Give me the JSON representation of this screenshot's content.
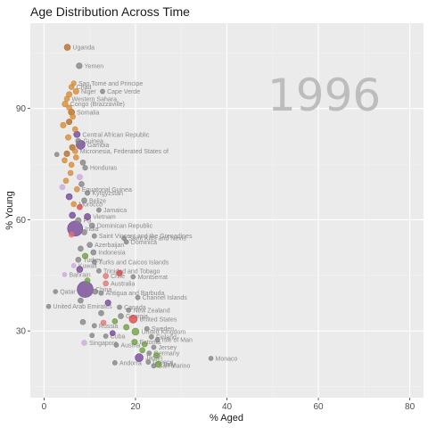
{
  "chart_data": {
    "type": "scatter",
    "title": "Age Distribution Across Time",
    "xlabel": "% Aged",
    "ylabel": "% Young",
    "xlim": [
      -3,
      83
    ],
    "ylim": [
      12,
      113
    ],
    "x_ticks": [
      0,
      20,
      40,
      60,
      80
    ],
    "y_ticks": [
      30,
      60,
      90
    ],
    "year": "1996",
    "grid": true,
    "legend": "none",
    "colors": {
      "panel": "#ebebeb",
      "grid_major": "#ffffff",
      "grid_minor": "#f4f4f4",
      "grey": "#7f7f7f",
      "orange": "#d4872f",
      "dark_orange": "#b5651d",
      "purple": "#6d3e91",
      "red": "#d94040",
      "green": "#6a9a3a",
      "light_purple": "#c9a6d9",
      "pink": "#e07070"
    },
    "points": [
      {
        "x": 5.1,
        "y": 106.5,
        "r": 3.5,
        "c": "dark_orange",
        "label": "Uganda"
      },
      {
        "x": 7.7,
        "y": 101.5,
        "r": 3.3,
        "c": "grey",
        "label": "Yemen"
      },
      {
        "x": 6.5,
        "y": 96.8,
        "r": 2.8,
        "c": "orange",
        "label": "Sao Tome and Principe"
      },
      {
        "x": 6.0,
        "y": 95.8,
        "r": 3,
        "c": "orange",
        "label": "Chad"
      },
      {
        "x": 7.0,
        "y": 94.6,
        "r": 3.2,
        "c": "orange",
        "label": "Niger"
      },
      {
        "x": 12.8,
        "y": 94.6,
        "r": 2.6,
        "c": "grey",
        "label": "Cape Verde"
      },
      {
        "x": 5.5,
        "y": 93.8,
        "r": 3.2,
        "c": "orange",
        "label": ""
      },
      {
        "x": 5.0,
        "y": 92.6,
        "r": 3,
        "c": "orange",
        "label": "Western Sahara"
      },
      {
        "x": 4.6,
        "y": 91.2,
        "r": 3.3,
        "c": "orange",
        "label": "Congo (Brazzaville)"
      },
      {
        "x": 5.5,
        "y": 90.2,
        "r": 3,
        "c": "orange",
        "label": ""
      },
      {
        "x": 6.0,
        "y": 89.0,
        "r": 3.5,
        "c": "dark_orange",
        "label": "Somalia"
      },
      {
        "x": 6.3,
        "y": 87.8,
        "r": 3,
        "c": "orange",
        "label": ""
      },
      {
        "x": 5.5,
        "y": 86.4,
        "r": 3.2,
        "c": "dark_orange",
        "label": ""
      },
      {
        "x": 4.2,
        "y": 85.5,
        "r": 3.2,
        "c": "orange",
        "label": ""
      },
      {
        "x": 6.8,
        "y": 84.4,
        "r": 3,
        "c": "orange",
        "label": ""
      },
      {
        "x": 7.2,
        "y": 83.0,
        "r": 3.6,
        "c": "purple",
        "label": "Central African Republic"
      },
      {
        "x": 5.3,
        "y": 82.2,
        "r": 3.2,
        "c": "orange",
        "label": ""
      },
      {
        "x": 7.5,
        "y": 81.2,
        "r": 3,
        "c": "grey",
        "label": "Guinea"
      },
      {
        "x": 8.0,
        "y": 80.2,
        "r": 5,
        "c": "purple",
        "label": "Gambia"
      },
      {
        "x": 6.2,
        "y": 79.5,
        "r": 3.3,
        "c": "dark_orange",
        "label": ""
      },
      {
        "x": 6.8,
        "y": 78.5,
        "r": 3,
        "c": "orange",
        "label": "Micronesia, Federated States of"
      },
      {
        "x": 5.0,
        "y": 77.8,
        "r": 3.2,
        "c": "dark_orange",
        "label": ""
      },
      {
        "x": 2.8,
        "y": 77.6,
        "r": 2.5,
        "c": "grey",
        "label": ""
      },
      {
        "x": 7.0,
        "y": 76.8,
        "r": 3,
        "c": "orange",
        "label": ""
      },
      {
        "x": 4.5,
        "y": 76.0,
        "r": 3,
        "c": "orange",
        "label": ""
      },
      {
        "x": 8.5,
        "y": 75.4,
        "r": 3,
        "c": "grey",
        "label": ""
      },
      {
        "x": 6.0,
        "y": 74.8,
        "r": 3,
        "c": "orange",
        "label": ""
      },
      {
        "x": 9.0,
        "y": 74.0,
        "r": 2.8,
        "c": "grey",
        "label": "Honduras"
      },
      {
        "x": 5.8,
        "y": 72.6,
        "r": 3,
        "c": "orange",
        "label": ""
      },
      {
        "x": 7.8,
        "y": 71.5,
        "r": 3.2,
        "c": "light_purple",
        "label": ""
      },
      {
        "x": 4.8,
        "y": 70.5,
        "r": 3,
        "c": "orange",
        "label": ""
      },
      {
        "x": 8.2,
        "y": 69.6,
        "r": 3,
        "c": "grey",
        "label": ""
      },
      {
        "x": 4.0,
        "y": 68.8,
        "r": 3,
        "c": "light_purple",
        "label": ""
      },
      {
        "x": 7.2,
        "y": 68.2,
        "r": 3,
        "c": "orange",
        "label": "Equatorial Guinea"
      },
      {
        "x": 9.5,
        "y": 67.2,
        "r": 2.8,
        "c": "grey",
        "label": "Kyrgyzstan"
      },
      {
        "x": 5.5,
        "y": 66.2,
        "r": 3.5,
        "c": "purple",
        "label": ""
      },
      {
        "x": 8.8,
        "y": 65.2,
        "r": 3,
        "c": "grey",
        "label": "Belize"
      },
      {
        "x": 6.5,
        "y": 64.2,
        "r": 3,
        "c": "orange",
        "label": "Morocco"
      },
      {
        "x": 7.8,
        "y": 63.4,
        "r": 3,
        "c": "red",
        "label": ""
      },
      {
        "x": 12.0,
        "y": 62.6,
        "r": 2.6,
        "c": "grey",
        "label": "Jamaica"
      },
      {
        "x": 6.2,
        "y": 61.2,
        "r": 3.5,
        "c": "purple",
        "label": ""
      },
      {
        "x": 9.5,
        "y": 60.8,
        "r": 3.6,
        "c": "purple",
        "label": "Vietnam"
      },
      {
        "x": 7.5,
        "y": 59.8,
        "r": 3.2,
        "c": "grey",
        "label": "Fiji"
      },
      {
        "x": 10.5,
        "y": 58.4,
        "r": 3,
        "c": "grey",
        "label": "Dominican Republic"
      },
      {
        "x": 6.8,
        "y": 57.6,
        "r": 8.5,
        "c": "purple",
        "label": "India"
      },
      {
        "x": 8.8,
        "y": 56.6,
        "r": 3,
        "c": "grey",
        "label": ""
      },
      {
        "x": 6.0,
        "y": 56.0,
        "r": 3,
        "c": "pink",
        "label": ""
      },
      {
        "x": 11.0,
        "y": 55.6,
        "r": 2.6,
        "c": "grey",
        "label": "Saint Vincent and the Grenadines"
      },
      {
        "x": 17.5,
        "y": 55.0,
        "r": 2.6,
        "c": "grey",
        "label": "Saint Kitts and Nevis"
      },
      {
        "x": 18.0,
        "y": 54.0,
        "r": 2.6,
        "c": "grey",
        "label": "Dominica"
      },
      {
        "x": 10.0,
        "y": 53.2,
        "r": 3,
        "c": "grey",
        "label": "Azerbaijan"
      },
      {
        "x": 8.0,
        "y": 52.2,
        "r": 3,
        "c": "grey",
        "label": ""
      },
      {
        "x": 10.8,
        "y": 51.2,
        "r": 3,
        "c": "grey",
        "label": "Indonesia"
      },
      {
        "x": 9.0,
        "y": 50.2,
        "r": 3.2,
        "c": "green",
        "label": ""
      },
      {
        "x": 7.5,
        "y": 49.2,
        "r": 3,
        "c": "grey",
        "label": "Turkey"
      },
      {
        "x": 11.0,
        "y": 48.6,
        "r": 2.6,
        "c": "grey",
        "label": "Turks and Caicos Islands"
      },
      {
        "x": 6.5,
        "y": 47.6,
        "r": 2.6,
        "c": "light_purple",
        "label": "Kuwait"
      },
      {
        "x": 7.8,
        "y": 46.6,
        "r": 3.5,
        "c": "purple",
        "label": ""
      },
      {
        "x": 12.0,
        "y": 46.2,
        "r": 2.6,
        "c": "grey",
        "label": "Trinidad and Tobago"
      },
      {
        "x": 16.5,
        "y": 45.6,
        "r": 3.2,
        "c": "red",
        "label": ""
      },
      {
        "x": 4.5,
        "y": 45.2,
        "r": 2.5,
        "c": "light_purple",
        "label": "Bahrain"
      },
      {
        "x": 13.5,
        "y": 44.8,
        "r": 3,
        "c": "pink",
        "label": "Chile"
      },
      {
        "x": 19.5,
        "y": 44.6,
        "r": 2.6,
        "c": "grey",
        "label": "Montserrat"
      },
      {
        "x": 9.5,
        "y": 43.6,
        "r": 3,
        "c": "green",
        "label": ""
      },
      {
        "x": 13.5,
        "y": 42.8,
        "r": 3,
        "c": "pink",
        "label": "Australia"
      },
      {
        "x": 9.0,
        "y": 41.2,
        "r": 9,
        "c": "purple",
        "label": "China"
      },
      {
        "x": 11.2,
        "y": 40.6,
        "r": 3,
        "c": "grey",
        "label": ""
      },
      {
        "x": 12.5,
        "y": 40.2,
        "r": 2.6,
        "c": "grey",
        "label": "Antigua and Barbuda"
      },
      {
        "x": 2.5,
        "y": 40.6,
        "r": 2.5,
        "c": "grey",
        "label": "Qatar"
      },
      {
        "x": 20.5,
        "y": 39.0,
        "r": 2.6,
        "c": "grey",
        "label": "Channel Islands"
      },
      {
        "x": 8.0,
        "y": 38.2,
        "r": 3,
        "c": "grey",
        "label": ""
      },
      {
        "x": 14.0,
        "y": 37.6,
        "r": 3.2,
        "c": "purple",
        "label": ""
      },
      {
        "x": 1.0,
        "y": 36.6,
        "r": 2.5,
        "c": "grey",
        "label": "United Arab Emirates"
      },
      {
        "x": 16.5,
        "y": 36.4,
        "r": 2.6,
        "c": "grey",
        "label": "Canada"
      },
      {
        "x": 18.5,
        "y": 35.6,
        "r": 2.6,
        "c": "grey",
        "label": "New Zealand"
      },
      {
        "x": 12.5,
        "y": 34.8,
        "r": 3,
        "c": "grey",
        "label": ""
      },
      {
        "x": 16.8,
        "y": 34.0,
        "r": 3,
        "c": "grey",
        "label": "Georgia"
      },
      {
        "x": 19.5,
        "y": 33.2,
        "r": 4.5,
        "c": "red",
        "label": "United States"
      },
      {
        "x": 15.5,
        "y": 32.6,
        "r": 3,
        "c": "green",
        "label": ""
      },
      {
        "x": 13.0,
        "y": 32.2,
        "r": 3,
        "c": "pink",
        "label": ""
      },
      {
        "x": 8.5,
        "y": 32.4,
        "r": 3,
        "c": "grey",
        "label": ""
      },
      {
        "x": 11.0,
        "y": 31.4,
        "r": 2.6,
        "c": "grey",
        "label": "Russia"
      },
      {
        "x": 18.0,
        "y": 31.0,
        "r": 3.2,
        "c": "green",
        "label": ""
      },
      {
        "x": 22.5,
        "y": 30.6,
        "r": 2.6,
        "c": "grey",
        "label": "Sweden"
      },
      {
        "x": 20.0,
        "y": 29.8,
        "r": 4,
        "c": "green",
        "label": "United Kingdom"
      },
      {
        "x": 15.0,
        "y": 29.4,
        "r": 3,
        "c": "purple",
        "label": ""
      },
      {
        "x": 13.5,
        "y": 28.6,
        "r": 2.6,
        "c": "grey",
        "label": "Cuba"
      },
      {
        "x": 23.5,
        "y": 28.4,
        "r": 2.6,
        "c": "grey",
        "label": "Finland"
      },
      {
        "x": 10.5,
        "y": 28.8,
        "r": 2.6,
        "c": "grey",
        "label": ""
      },
      {
        "x": 24.8,
        "y": 27.6,
        "r": 2.6,
        "c": "grey",
        "label": "Isle of Man"
      },
      {
        "x": 19.8,
        "y": 27.0,
        "r": 3.2,
        "c": "green",
        "label": "Estonia"
      },
      {
        "x": 8.8,
        "y": 26.8,
        "r": 3,
        "c": "light_purple",
        "label": "Singapore"
      },
      {
        "x": 22.0,
        "y": 26.4,
        "r": 3,
        "c": "green",
        "label": ""
      },
      {
        "x": 15.8,
        "y": 26.2,
        "r": 2.6,
        "c": "grey",
        "label": "Austria"
      },
      {
        "x": 24.0,
        "y": 25.6,
        "r": 2.6,
        "c": "grey",
        "label": "Jersey"
      },
      {
        "x": 21.5,
        "y": 24.8,
        "r": 3,
        "c": "green",
        "label": ""
      },
      {
        "x": 23.0,
        "y": 24.0,
        "r": 2.6,
        "c": "grey",
        "label": "Germany"
      },
      {
        "x": 24.6,
        "y": 23.4,
        "r": 3.2,
        "c": "green",
        "label": ""
      },
      {
        "x": 20.8,
        "y": 22.8,
        "r": 4.5,
        "c": "purple",
        "label": "Japan"
      },
      {
        "x": 36.5,
        "y": 22.6,
        "r": 2.5,
        "c": "grey",
        "label": "Monaco"
      },
      {
        "x": 15.5,
        "y": 21.4,
        "r": 2.6,
        "c": "grey",
        "label": "Andorra"
      },
      {
        "x": 22.8,
        "y": 21.6,
        "r": 2.6,
        "c": "grey",
        "label": "Greece"
      },
      {
        "x": 25.0,
        "y": 21.0,
        "r": 3.5,
        "c": "green",
        "label": "Italy"
      },
      {
        "x": 24.0,
        "y": 20.6,
        "r": 2.6,
        "c": "grey",
        "label": "San Marino"
      }
    ]
  }
}
